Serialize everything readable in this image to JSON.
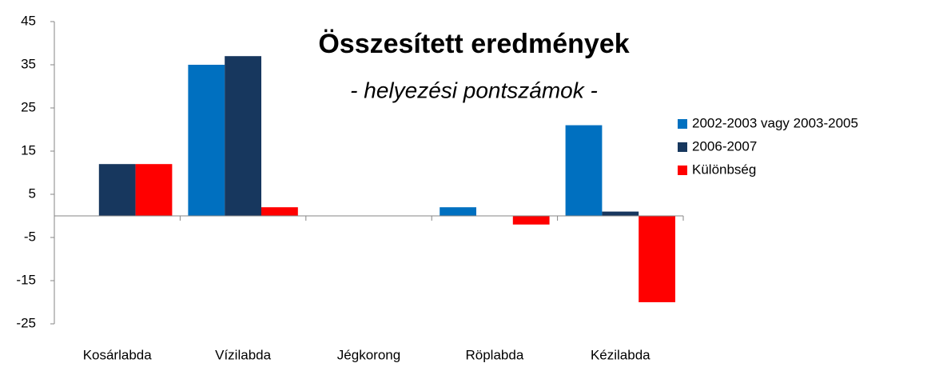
{
  "chart_data": {
    "type": "bar",
    "title": "Összesített eredmények",
    "subtitle": "- helyezési pontszámok -",
    "categories": [
      "Kosárlabda",
      "Vízilabda",
      "Jégkorong",
      "Röplabda",
      "Kézilabda"
    ],
    "series": [
      {
        "name": "2002-2003 vagy 2003-2005",
        "color": "#0070c0",
        "values": [
          0,
          35,
          0,
          2,
          21
        ]
      },
      {
        "name": "2006-2007",
        "color": "#17375e",
        "values": [
          12,
          37,
          0,
          0,
          1
        ]
      },
      {
        "name": "Különbség",
        "color": "#ff0000",
        "values": [
          12,
          2,
          0,
          -2,
          -20
        ]
      }
    ],
    "ylim": [
      -25,
      45
    ],
    "yticks": [
      -25,
      -15,
      -5,
      5,
      15,
      25,
      35,
      45
    ],
    "legend": "right"
  }
}
